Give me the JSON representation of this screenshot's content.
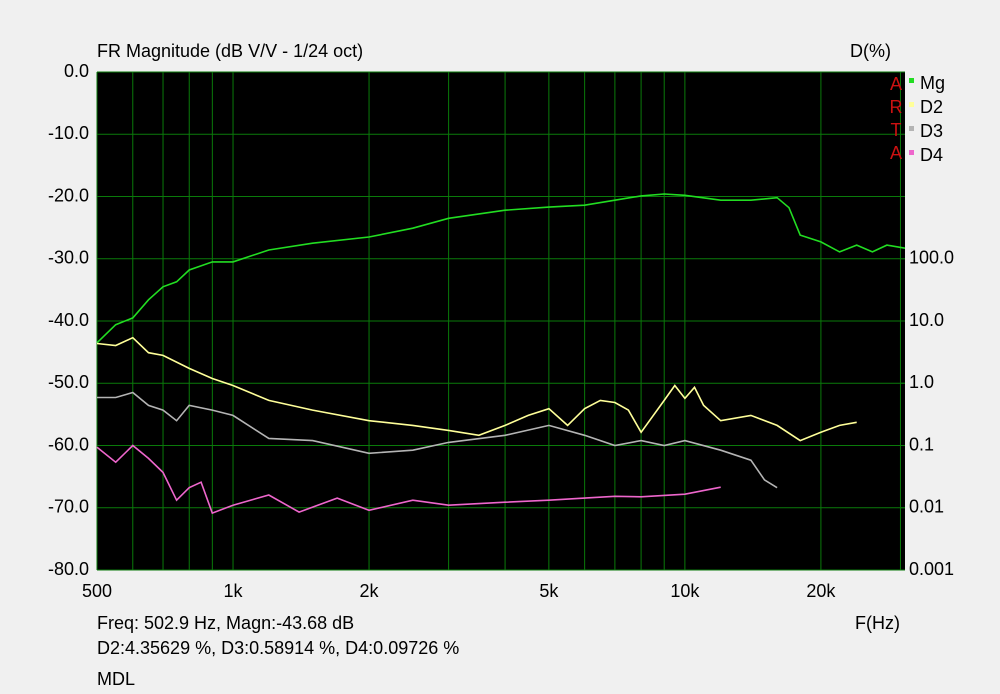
{
  "chart_data": {
    "type": "line",
    "title": "FR Magnitude (dB V/V - 1/24 oct)",
    "y2_label": "D(%)",
    "x_label": "F(Hz)",
    "watermark": "ARTA",
    "cursor_info": "Freq: 502.9 Hz, Magn:-43.68 dB",
    "distortion_info": "D2:4.35629 %, D3:0.58914 %, D4:0.09726 %",
    "footer": "MDL",
    "xscale": "log",
    "y2scale": "log",
    "grid": true,
    "legend": "right",
    "xlim": [
      500,
      30700
    ],
    "xticks": [
      500,
      {
        "value": 1000,
        "label": "1k"
      },
      {
        "value": 2000,
        "label": "2k"
      },
      {
        "value": 5000,
        "label": "5k"
      },
      {
        "value": 10000,
        "label": "10k"
      },
      {
        "value": 20000,
        "label": "20k"
      }
    ],
    "xminorticks": [
      600,
      700,
      800,
      900,
      3000,
      4000,
      6000,
      7000,
      8000,
      9000,
      30000
    ],
    "ylim": [
      -80,
      0
    ],
    "yticks": [
      {
        "value": 0,
        "label": "0.0"
      },
      {
        "value": -10,
        "label": "-10.0"
      },
      {
        "value": -20,
        "label": "-20.0"
      },
      {
        "value": -30,
        "label": "-30.0"
      },
      {
        "value": -40,
        "label": "-40.0"
      },
      {
        "value": -50,
        "label": "-50.0"
      },
      {
        "value": -60,
        "label": "-60.0"
      },
      {
        "value": -70,
        "label": "-70.0"
      },
      {
        "value": -80,
        "label": "-80.0"
      }
    ],
    "y2lim": [
      0.001,
      100000
    ],
    "y2ticks": [
      {
        "value": 100,
        "label": "100.0"
      },
      {
        "value": 10,
        "label": "10.0"
      },
      {
        "value": 1,
        "label": "1.0"
      },
      0.1,
      0.01,
      0.001
    ],
    "series": [
      {
        "name": "Mg",
        "color": "#22dd22",
        "x": [
          500,
          550,
          600,
          650,
          700,
          750,
          800,
          900,
          1000,
          1200,
          1500,
          2000,
          2500,
          3000,
          4000,
          5000,
          6000,
          7000,
          8000,
          9000,
          10000,
          12000,
          14000,
          16000,
          17000,
          18000,
          20000,
          22000,
          24000,
          26000,
          28000,
          30700
        ],
        "values": [
          -43.5,
          -40.6,
          -39.5,
          -36.6,
          -34.5,
          -33.7,
          -31.8,
          -30.5,
          -30.5,
          -28.6,
          -27.5,
          -26.5,
          -25.1,
          -23.5,
          -22.2,
          -21.7,
          -21.4,
          -20.6,
          -19.9,
          -19.6,
          -19.8,
          -20.6,
          -20.6,
          -20.2,
          -21.8,
          -26.2,
          -27.3,
          -28.9,
          -27.8,
          -28.9,
          -27.8,
          -28.3
        ]
      },
      {
        "name": "D2",
        "color": "#ffff99",
        "axis": "y2",
        "x": [
          500,
          550,
          600,
          650,
          700,
          800,
          900,
          1000,
          1200,
          1500,
          2000,
          2500,
          3000,
          3500,
          4000,
          4500,
          5000,
          5500,
          6000,
          6500,
          7000,
          7500,
          8000,
          9000,
          9500,
          10000,
          10500,
          11000,
          12000,
          14000,
          16000,
          18000,
          20000,
          22000,
          24000
        ],
        "values": [
          4.35,
          4.04,
          5.4,
          3.1,
          2.8,
          1.73,
          1.19,
          0.92,
          0.53,
          0.37,
          0.25,
          0.21,
          0.175,
          0.146,
          0.21,
          0.305,
          0.39,
          0.21,
          0.39,
          0.53,
          0.49,
          0.37,
          0.163,
          0.53,
          0.92,
          0.57,
          0.86,
          0.44,
          0.25,
          0.305,
          0.21,
          0.12,
          0.163,
          0.21,
          0.236
        ]
      },
      {
        "name": "D3",
        "color": "#b4b4b4",
        "axis": "y2",
        "x": [
          500,
          550,
          600,
          650,
          700,
          750,
          800,
          900,
          1000,
          1200,
          1500,
          2000,
          2500,
          3000,
          4000,
          5000,
          6000,
          7000,
          8000,
          9000,
          10000,
          12000,
          14000,
          15000,
          16000
        ],
        "values": [
          0.59,
          0.59,
          0.71,
          0.44,
          0.37,
          0.25,
          0.44,
          0.37,
          0.305,
          0.13,
          0.12,
          0.075,
          0.084,
          0.112,
          0.146,
          0.21,
          0.146,
          0.1,
          0.12,
          0.1,
          0.12,
          0.084,
          0.058,
          0.028,
          0.021
        ]
      },
      {
        "name": "D4",
        "color": "#ee66cc",
        "axis": "y2",
        "x": [
          500,
          550,
          600,
          650,
          700,
          750,
          800,
          850,
          900,
          1000,
          1200,
          1400,
          1700,
          2000,
          2500,
          3000,
          4000,
          5000,
          6000,
          7000,
          8000,
          10000,
          12000
        ],
        "values": [
          0.094,
          0.054,
          0.1,
          0.062,
          0.037,
          0.0132,
          0.021,
          0.0257,
          0.0082,
          0.011,
          0.016,
          0.0085,
          0.0143,
          0.0091,
          0.0132,
          0.011,
          0.0123,
          0.0132,
          0.0143,
          0.0153,
          0.015,
          0.0165,
          0.0214
        ]
      }
    ]
  }
}
